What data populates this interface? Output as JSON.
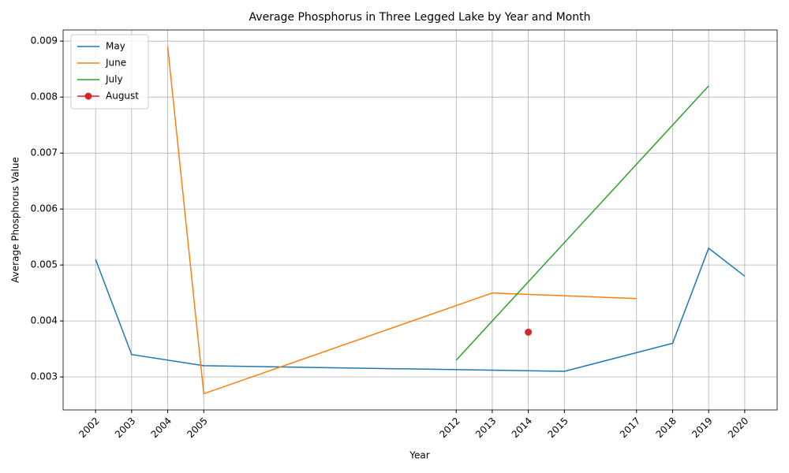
{
  "chart_data": {
    "type": "line",
    "title": "Average Phosphorus in Three Legged Lake by Year and Month",
    "x_label": "Year",
    "y_label": "Average Phosphorus Value",
    "series": [
      {
        "name": "May",
        "color": "#1f77b4",
        "x": [
          2002,
          2003,
          2005,
          2015,
          2018,
          2019,
          2020
        ],
        "values": [
          0.0051,
          0.0034,
          0.0032,
          0.0031,
          0.0036,
          0.0053,
          0.0048
        ]
      },
      {
        "name": "June",
        "color": "#ff7f0e",
        "x": [
          2004,
          2005,
          2013,
          2017
        ],
        "values": [
          0.0089,
          0.0027,
          0.0045,
          0.0044
        ]
      },
      {
        "name": "July",
        "color": "#2ca02c",
        "x": [
          2012,
          2019
        ],
        "values": [
          0.0033,
          0.0082
        ]
      },
      {
        "name": "August",
        "color": "#d62728",
        "x": [
          2014
        ],
        "values": [
          0.0038
        ],
        "marker": true
      }
    ],
    "xlim": [
      2001.1,
      2020.9
    ],
    "xticks": [
      2002,
      2003,
      2004,
      2005,
      2012,
      2013,
      2014,
      2015,
      2017,
      2018,
      2019,
      2020
    ],
    "ylim": [
      0.00241,
      0.0092
    ],
    "yticks": [
      0.003,
      0.004,
      0.005,
      0.006,
      0.007,
      0.008,
      0.009
    ],
    "grid": true,
    "legend": "upper-left"
  }
}
